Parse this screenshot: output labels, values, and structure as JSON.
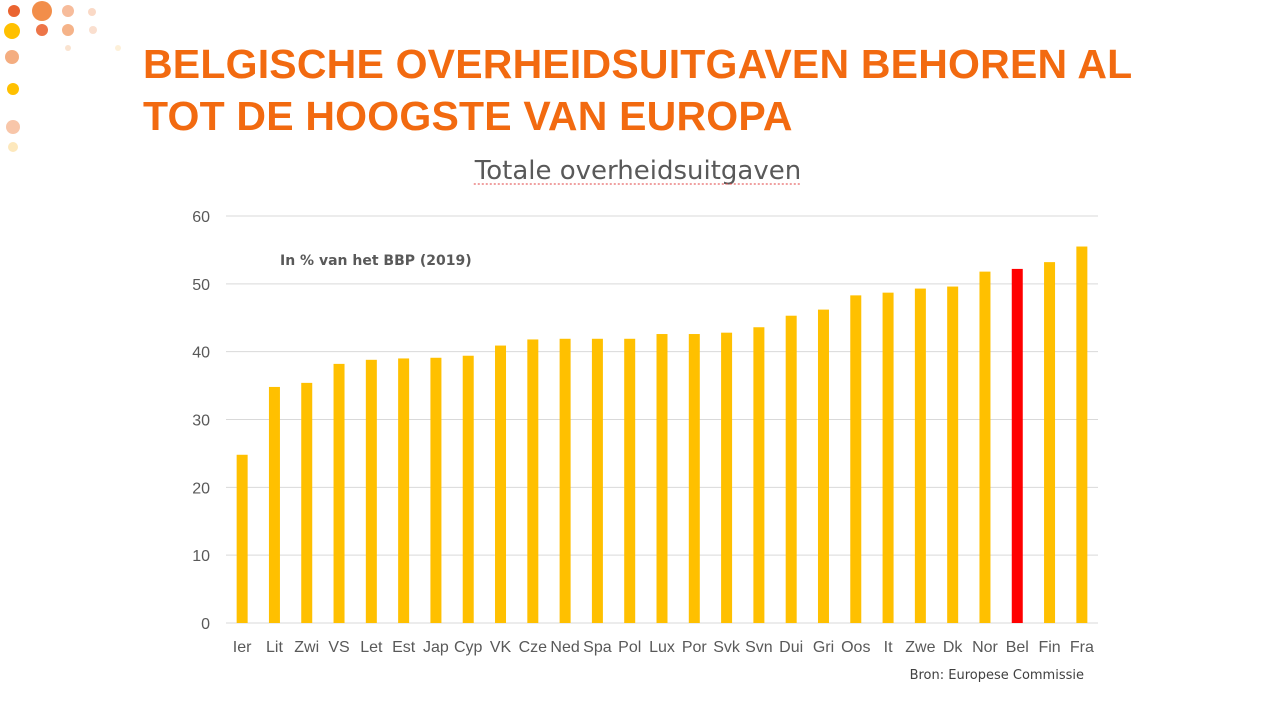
{
  "slide": {
    "title_line1": "BELGISCHE OVERHEIDSUITGAVEN BEHOREN AL",
    "title_line2": "TOT DE HOOGSTE VAN EUROPA"
  },
  "colors": {
    "title": "#f26a10",
    "bar": "#ffc000",
    "highlight": "#ff0000",
    "axis_text": "#595959",
    "grid": "#d9d9d9"
  },
  "chart_data": {
    "type": "bar",
    "title": "Totale overheidsuitgaven",
    "subtitle": "In % van het BBP (2019)",
    "source": "Bron: Europese Commissie",
    "ylim": [
      0,
      60
    ],
    "yticks": [
      0,
      10,
      20,
      30,
      40,
      50,
      60
    ],
    "grid": true,
    "highlight_category": "Bel",
    "categories": [
      "Ier",
      "Lit",
      "Zwi",
      "VS",
      "Let",
      "Est",
      "Jap",
      "Cyp",
      "VK",
      "Cze",
      "Ned",
      "Spa",
      "Pol",
      "Lux",
      "Por",
      "Svk",
      "Svn",
      "Dui",
      "Gri",
      "Oos",
      "It",
      "Zwe",
      "Dk",
      "Nor",
      "Bel",
      "Fin",
      "Fra"
    ],
    "values": [
      24.8,
      34.8,
      35.4,
      38.2,
      38.8,
      39.0,
      39.1,
      39.4,
      40.9,
      41.8,
      41.9,
      41.9,
      41.9,
      42.6,
      42.6,
      42.8,
      43.6,
      45.3,
      46.2,
      48.3,
      48.7,
      49.3,
      49.6,
      51.8,
      52.2,
      53.2,
      55.5
    ]
  }
}
